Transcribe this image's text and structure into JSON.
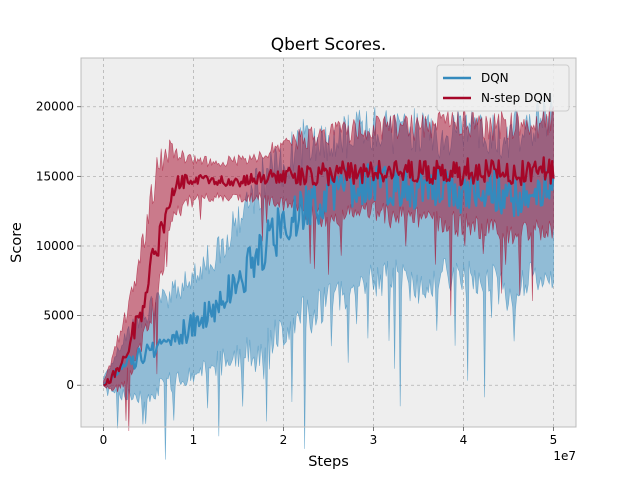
{
  "chart_data": {
    "type": "line",
    "title": "Qbert Scores.",
    "xlabel": "Steps",
    "ylabel": "Score",
    "x_offset_label": "1e7",
    "xlim": [
      -0.25,
      5.25
    ],
    "ylim": [
      -3000,
      23500
    ],
    "x_ticks": [
      0,
      1,
      2,
      3,
      4,
      5
    ],
    "x_tick_labels": [
      "0",
      "1",
      "2",
      "3",
      "4",
      "5"
    ],
    "y_ticks": [
      0,
      5000,
      10000,
      15000,
      20000
    ],
    "y_tick_labels": [
      "0",
      "5000",
      "10000",
      "15000",
      "20000"
    ],
    "grid": true,
    "legend_position": "top-right",
    "series": [
      {
        "name": "DQN",
        "color": "#348ABD",
        "x": [
          0,
          0.25,
          0.5,
          0.75,
          1.0,
          1.25,
          1.5,
          1.75,
          2.0,
          2.25,
          2.5,
          2.75,
          3.0,
          3.25,
          3.5,
          3.75,
          4.0,
          4.25,
          4.5,
          4.75,
          5.0
        ],
        "values": [
          0,
          1500,
          2500,
          3500,
          4200,
          5800,
          7500,
          9800,
          11500,
          12800,
          13600,
          14200,
          14500,
          14300,
          14000,
          14200,
          13800,
          14200,
          13600,
          14000,
          14200
        ],
        "lower": [
          0,
          -800,
          -500,
          200,
          500,
          1500,
          2000,
          2500,
          4000,
          5000,
          6000,
          7000,
          7500,
          8000,
          7000,
          8000,
          7500,
          8000,
          6500,
          7500,
          8000
        ],
        "upper": [
          500,
          3500,
          5500,
          6500,
          8000,
          9500,
          12000,
          14500,
          16000,
          17500,
          17500,
          18000,
          18500,
          18000,
          18500,
          17500,
          18500,
          18000,
          18000,
          18500,
          19500
        ]
      },
      {
        "name": "N-step DQN",
        "color": "#A60628",
        "x": [
          0,
          0.1,
          0.2,
          0.3,
          0.4,
          0.5,
          0.6,
          0.7,
          0.8,
          1.0,
          1.25,
          1.5,
          1.75,
          2.0,
          2.5,
          3.0,
          3.5,
          4.0,
          4.5,
          5.0
        ],
        "values": [
          0,
          600,
          1800,
          3300,
          5000,
          7500,
          10200,
          12500,
          14500,
          14800,
          14700,
          14600,
          14900,
          15000,
          15200,
          15300,
          15300,
          15400,
          15400,
          15300
        ],
        "lower": [
          0,
          -500,
          200,
          1000,
          2500,
          4500,
          7000,
          10000,
          12500,
          13500,
          13500,
          13500,
          13500,
          13000,
          12000,
          12500,
          12000,
          11500,
          11000,
          11000
        ],
        "upper": [
          300,
          2000,
          4000,
          6000,
          9000,
          12500,
          15500,
          17000,
          16500,
          16200,
          16000,
          16200,
          16500,
          17500,
          18000,
          18500,
          18500,
          19000,
          18500,
          19000
        ]
      }
    ]
  }
}
